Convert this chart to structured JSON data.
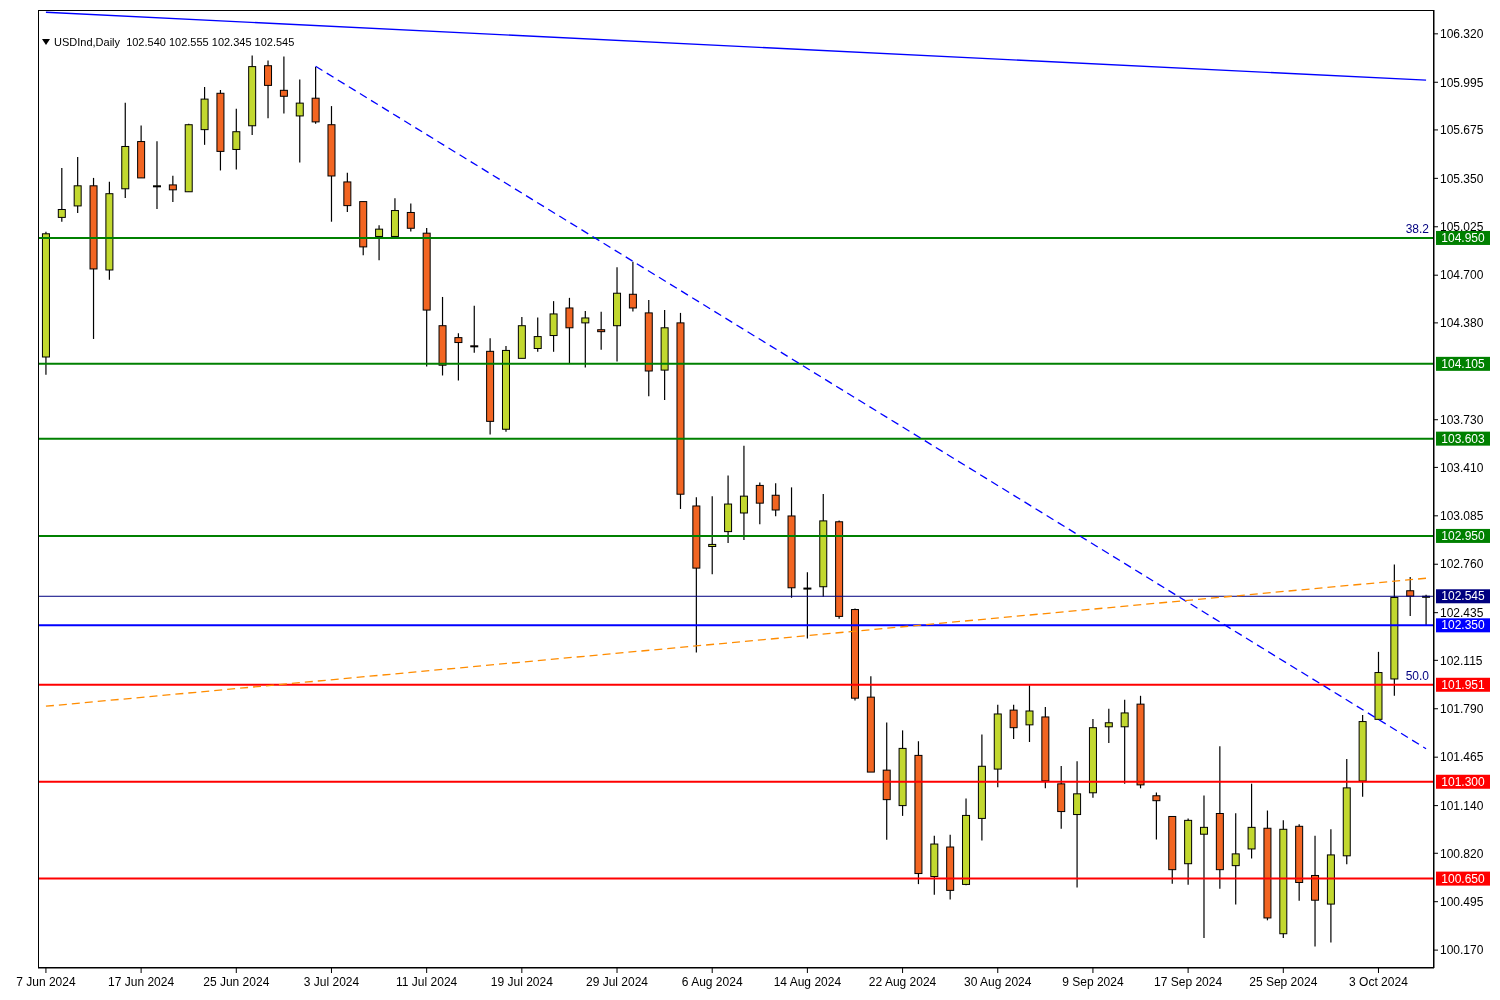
{
  "chart_data": {
    "type": "candlestick",
    "title": "USDInd,Daily  102.540 102.555 102.345 102.545",
    "categories": [
      "7 Jun 2024",
      null,
      null,
      null,
      null,
      null,
      "17 Jun 2024",
      null,
      null,
      null,
      null,
      null,
      "25 Jun 2024",
      null,
      null,
      null,
      null,
      null,
      "3 Jul 2024",
      null,
      null,
      null,
      null,
      null,
      "11 Jul 2024",
      null,
      null,
      null,
      null,
      null,
      "19 Jul 2024",
      null,
      null,
      null,
      null,
      null,
      "29 Jul 2024",
      null,
      null,
      null,
      null,
      null,
      "6 Aug 2024",
      null,
      null,
      null,
      null,
      null,
      "14 Aug 2024",
      null,
      null,
      null,
      null,
      null,
      "22 Aug 2024",
      null,
      null,
      null,
      null,
      null,
      "30 Aug 2024",
      null,
      null,
      null,
      null,
      null,
      "9 Sep 2024",
      null,
      null,
      null,
      null,
      null,
      "17 Sep 2024",
      null,
      null,
      null,
      null,
      null,
      "25 Sep 2024",
      null,
      null,
      null,
      null,
      null,
      "3 Oct 2024",
      null,
      null,
      null
    ],
    "ohlc": [
      [
        104.151,
        104.991,
        104.032,
        104.978
      ],
      [
        105.088,
        105.419,
        105.059,
        105.141
      ],
      [
        105.165,
        105.493,
        105.118,
        105.3
      ],
      [
        105.3,
        105.353,
        104.272,
        104.742
      ],
      [
        104.735,
        105.328,
        104.669,
        105.247
      ],
      [
        105.28,
        105.857,
        105.218,
        105.564
      ],
      [
        105.597,
        105.705,
        105.353,
        105.353
      ],
      [
        105.295,
        105.599,
        105.145,
        105.3
      ],
      [
        105.306,
        105.368,
        105.191,
        105.273
      ],
      [
        105.26,
        105.716,
        105.26,
        105.71
      ],
      [
        105.677,
        105.963,
        105.575,
        105.882
      ],
      [
        105.921,
        105.943,
        105.403,
        105.531
      ],
      [
        105.544,
        105.817,
        105.409,
        105.663
      ],
      [
        105.703,
        106.175,
        105.641,
        106.1
      ],
      [
        106.106,
        106.141,
        105.753,
        105.974
      ],
      [
        105.941,
        106.168,
        105.786,
        105.901
      ],
      [
        105.769,
        106.014,
        105.456,
        105.855
      ],
      [
        105.888,
        106.097,
        105.716,
        105.729
      ],
      [
        105.71,
        105.835,
        105.059,
        105.366
      ],
      [
        105.326,
        105.388,
        105.125,
        105.167
      ],
      [
        105.194,
        105.194,
        104.834,
        104.89
      ],
      [
        104.96,
        105.035,
        104.801,
        105.009
      ],
      [
        104.96,
        105.216,
        104.96,
        105.134
      ],
      [
        105.121,
        105.181,
        104.993,
        105.015
      ],
      [
        104.982,
        105.017,
        104.087,
        104.466
      ],
      [
        104.361,
        104.554,
        104.027,
        104.096
      ],
      [
        104.281,
        104.31,
        103.994,
        104.248
      ],
      [
        104.226,
        104.495,
        104.179,
        104.222
      ],
      [
        104.189,
        104.277,
        103.631,
        103.719
      ],
      [
        103.666,
        104.225,
        103.65,
        104.195
      ],
      [
        104.142,
        104.42,
        104.142,
        104.361
      ],
      [
        104.208,
        104.416,
        104.186,
        104.288
      ],
      [
        104.295,
        104.526,
        104.186,
        104.44
      ],
      [
        104.48,
        104.548,
        104.109,
        104.347
      ],
      [
        104.38,
        104.46,
        104.08,
        104.413
      ],
      [
        104.334,
        104.455,
        104.199,
        104.321
      ],
      [
        104.361,
        104.753,
        104.12,
        104.579
      ],
      [
        104.572,
        104.79,
        104.457,
        104.48
      ],
      [
        104.447,
        104.533,
        103.888,
        104.057
      ],
      [
        104.063,
        104.466,
        103.862,
        104.347
      ],
      [
        104.38,
        104.447,
        103.131,
        103.23
      ],
      [
        103.151,
        103.21,
        102.167,
        102.734
      ],
      [
        102.879,
        103.217,
        102.692,
        102.893
      ],
      [
        102.979,
        103.355,
        102.903,
        103.164
      ],
      [
        103.104,
        103.556,
        102.923,
        103.217
      ],
      [
        103.289,
        103.309,
        103.029,
        103.17
      ],
      [
        103.223,
        103.303,
        103.082,
        103.124
      ],
      [
        103.084,
        103.276,
        102.535,
        102.602
      ],
      [
        102.597,
        102.707,
        102.262,
        102.6
      ],
      [
        102.609,
        103.232,
        102.541,
        103.051
      ],
      [
        103.045,
        103.053,
        102.394,
        102.41
      ],
      [
        102.456,
        102.463,
        101.845,
        101.861
      ],
      [
        101.868,
        102.008,
        101.365,
        101.365
      ],
      [
        101.378,
        101.698,
        100.911,
        101.18
      ],
      [
        101.14,
        101.645,
        101.071,
        101.524
      ],
      [
        101.477,
        101.572,
        100.613,
        100.684
      ],
      [
        100.664,
        100.937,
        100.542,
        100.882
      ],
      [
        100.862,
        100.944,
        100.509,
        100.571
      ],
      [
        100.611,
        101.188,
        100.605,
        101.074
      ],
      [
        101.054,
        101.618,
        100.906,
        101.404
      ],
      [
        101.385,
        101.817,
        101.263,
        101.755
      ],
      [
        101.781,
        101.817,
        101.587,
        101.663
      ],
      [
        101.682,
        101.948,
        101.567,
        101.775
      ],
      [
        101.735,
        101.802,
        101.256,
        101.306
      ],
      [
        101.286,
        101.406,
        100.985,
        101.1
      ],
      [
        101.08,
        101.438,
        100.591,
        101.219
      ],
      [
        101.226,
        101.722,
        101.193,
        101.663
      ],
      [
        101.669,
        101.79,
        101.561,
        101.696
      ],
      [
        101.669,
        101.85,
        101.286,
        101.762
      ],
      [
        101.821,
        101.877,
        101.256,
        101.279
      ],
      [
        101.206,
        101.228,
        100.913,
        101.173
      ],
      [
        101.067,
        101.067,
        100.615,
        100.71
      ],
      [
        100.75,
        101.054,
        100.608,
        101.041
      ],
      [
        100.948,
        101.207,
        100.251,
        100.994
      ],
      [
        101.087,
        101.539,
        100.582,
        100.71
      ],
      [
        100.737,
        101.089,
        100.476,
        100.816
      ],
      [
        100.849,
        101.287,
        100.785,
        100.994
      ],
      [
        100.988,
        101.107,
        100.37,
        100.386
      ],
      [
        100.28,
        101.041,
        100.251,
        100.981
      ],
      [
        101.001,
        101.014,
        100.502,
        100.624
      ],
      [
        100.671,
        100.937,
        100.194,
        100.505
      ],
      [
        100.479,
        100.981,
        100.221,
        100.809
      ],
      [
        100.803,
        101.453,
        100.747,
        101.259
      ],
      [
        101.305,
        101.748,
        101.2,
        101.704
      ],
      [
        101.719,
        102.172,
        101.715,
        102.033
      ],
      [
        101.99,
        102.758,
        101.878,
        102.537
      ],
      [
        102.582,
        102.674,
        102.412,
        102.546
      ],
      [
        102.54,
        102.555,
        102.345,
        102.545
      ]
    ],
    "colors": [
      "#c2d82f",
      "#c2d82f",
      "#c2d82f",
      "#f26522",
      "#c2d82f",
      "#c2d82f",
      "#f26522",
      "#c2d82f",
      "#f26522",
      "#c2d82f",
      "#c2d82f",
      "#f26522",
      "#c2d82f",
      "#c2d82f",
      "#f26522",
      "#f26522",
      "#c2d82f",
      "#f26522",
      "#f26522",
      "#f26522",
      "#f26522",
      "#c2d82f",
      "#c2d82f",
      "#f26522",
      "#f26522",
      "#f26522",
      "#f26522",
      "#f26522",
      "#f26522",
      "#c2d82f",
      "#c2d82f",
      "#c2d82f",
      "#c2d82f",
      "#f26522",
      "#c2d82f",
      "#f26522",
      "#c2d82f",
      "#f26522",
      "#f26522",
      "#c2d82f",
      "#f26522",
      "#f26522",
      "#c2d82f",
      "#c2d82f",
      "#c2d82f",
      "#f26522",
      "#f26522",
      "#f26522",
      "#c2d82f",
      "#c2d82f",
      "#f26522",
      "#f26522",
      "#f26522",
      "#f26522",
      "#c2d82f",
      "#f26522",
      "#c2d82f",
      "#f26522",
      "#c2d82f",
      "#c2d82f",
      "#c2d82f",
      "#f26522",
      "#c2d82f",
      "#f26522",
      "#f26522",
      "#c2d82f",
      "#c2d82f",
      "#c2d82f",
      "#c2d82f",
      "#f26522",
      "#f26522",
      "#f26522",
      "#c2d82f",
      "#c2d82f",
      "#f26522",
      "#c2d82f",
      "#c2d82f",
      "#f26522",
      "#c2d82f",
      "#f26522",
      "#f26522",
      "#c2d82f",
      "#c2d82f",
      "#c2d82f",
      "#c2d82f",
      "#c2d82f",
      "#f26522",
      "#c2d82f"
    ],
    "series": [
      {
        "type": "line",
        "color": "#0000ff",
        "line_style": "solid",
        "values": [
          106.465,
          null,
          null,
          null,
          null,
          null,
          null,
          null,
          null,
          null,
          null,
          null,
          null,
          null,
          null,
          null,
          null,
          null,
          null,
          null,
          null,
          null,
          null,
          null,
          null,
          null,
          null,
          null,
          null,
          null,
          null,
          null,
          null,
          null,
          null,
          null,
          null,
          null,
          null,
          null,
          null,
          null,
          null,
          null,
          null,
          null,
          null,
          null,
          null,
          null,
          null,
          null,
          null,
          null,
          null,
          null,
          null,
          null,
          null,
          null,
          null,
          null,
          null,
          null,
          null,
          null,
          null,
          null,
          null,
          null,
          null,
          null,
          null,
          null,
          null,
          null,
          null,
          null,
          null,
          null,
          null,
          null,
          null,
          null,
          null,
          null,
          null,
          106.009
        ]
      },
      {
        "type": "line",
        "color": "#0000ff",
        "line_style": "dashed",
        "values": [
          null,
          null,
          null,
          null,
          null,
          null,
          null,
          null,
          null,
          null,
          null,
          null,
          null,
          null,
          null,
          null,
          null,
          106.102,
          null,
          null,
          null,
          null,
          null,
          null,
          null,
          null,
          null,
          null,
          null,
          null,
          null,
          null,
          null,
          null,
          null,
          null,
          null,
          null,
          null,
          null,
          null,
          null,
          null,
          null,
          null,
          null,
          null,
          null,
          null,
          null,
          null,
          null,
          null,
          null,
          null,
          null,
          null,
          null,
          null,
          null,
          null,
          null,
          null,
          null,
          null,
          null,
          null,
          null,
          null,
          null,
          null,
          null,
          null,
          null,
          null,
          null,
          null,
          null,
          null,
          null,
          null,
          null,
          null,
          null,
          null,
          null,
          null,
          101.522
        ]
      },
      {
        "type": "line",
        "color": "#ff8c00",
        "line_style": "dashed",
        "values": [
          101.807,
          null,
          null,
          null,
          null,
          null,
          null,
          null,
          null,
          null,
          null,
          null,
          null,
          null,
          null,
          null,
          null,
          null,
          null,
          null,
          null,
          null,
          null,
          null,
          null,
          null,
          null,
          null,
          null,
          null,
          null,
          null,
          null,
          null,
          null,
          null,
          null,
          null,
          null,
          null,
          null,
          null,
          null,
          null,
          null,
          null,
          null,
          null,
          null,
          null,
          null,
          null,
          null,
          null,
          null,
          null,
          null,
          null,
          null,
          null,
          null,
          null,
          null,
          null,
          null,
          null,
          null,
          null,
          null,
          null,
          null,
          null,
          null,
          null,
          null,
          null,
          null,
          null,
          null,
          null,
          null,
          null,
          null,
          null,
          null,
          null,
          null,
          102.666
        ]
      }
    ],
    "ylim": [
      100.05,
      106.48
    ],
    "yticks": [
      {
        "value": 106.32,
        "label": "106.320"
      },
      {
        "value": 105.995,
        "label": "105.995"
      },
      {
        "value": 105.675,
        "label": "105.675"
      },
      {
        "value": 105.35,
        "label": "105.350"
      },
      {
        "value": 105.025,
        "label": "105.025"
      },
      {
        "value": 104.7,
        "label": "104.700"
      },
      {
        "value": 104.38,
        "label": "104.380"
      },
      {
        "value": 103.73,
        "label": "103.730"
      },
      {
        "value": 103.41,
        "label": "103.410"
      },
      {
        "value": 103.085,
        "label": "103.085"
      },
      {
        "value": 102.76,
        "label": "102.760"
      },
      {
        "value": 102.435,
        "label": "102.435"
      },
      {
        "value": 102.115,
        "label": "102.115"
      },
      {
        "value": 101.79,
        "label": "101.790"
      },
      {
        "value": 101.465,
        "label": "101.465"
      },
      {
        "value": 101.14,
        "label": "101.140"
      },
      {
        "value": 100.82,
        "label": "100.820"
      },
      {
        "value": 100.495,
        "label": "100.495"
      },
      {
        "value": 100.17,
        "label": "100.170"
      }
    ],
    "ref_lines": [
      {
        "axis": "y",
        "value": 104.95,
        "label": "104.950",
        "color": "#008000"
      },
      {
        "axis": "y",
        "value": 104.105,
        "label": "104.105",
        "color": "#008000"
      },
      {
        "axis": "y",
        "value": 103.603,
        "label": "103.603",
        "color": "#008000"
      },
      {
        "axis": "y",
        "value": 102.95,
        "label": "102.950",
        "color": "#008000"
      },
      {
        "axis": "y",
        "value": 102.545,
        "label": "102.545",
        "color": "#000080"
      },
      {
        "axis": "y",
        "value": 102.35,
        "label": "102.350",
        "color": "#0000ff"
      },
      {
        "axis": "y",
        "value": 101.951,
        "label": "101.951",
        "color": "#ff0000"
      },
      {
        "axis": "y",
        "value": 101.3,
        "label": "101.300",
        "color": "#ff0000"
      },
      {
        "axis": "y",
        "value": 100.65,
        "label": "100.650",
        "color": "#ff0000"
      }
    ],
    "annotations": [
      {
        "text": "38.2",
        "y": 104.95
      },
      {
        "text": "50.0",
        "y": 101.951
      }
    ],
    "grid": false
  }
}
